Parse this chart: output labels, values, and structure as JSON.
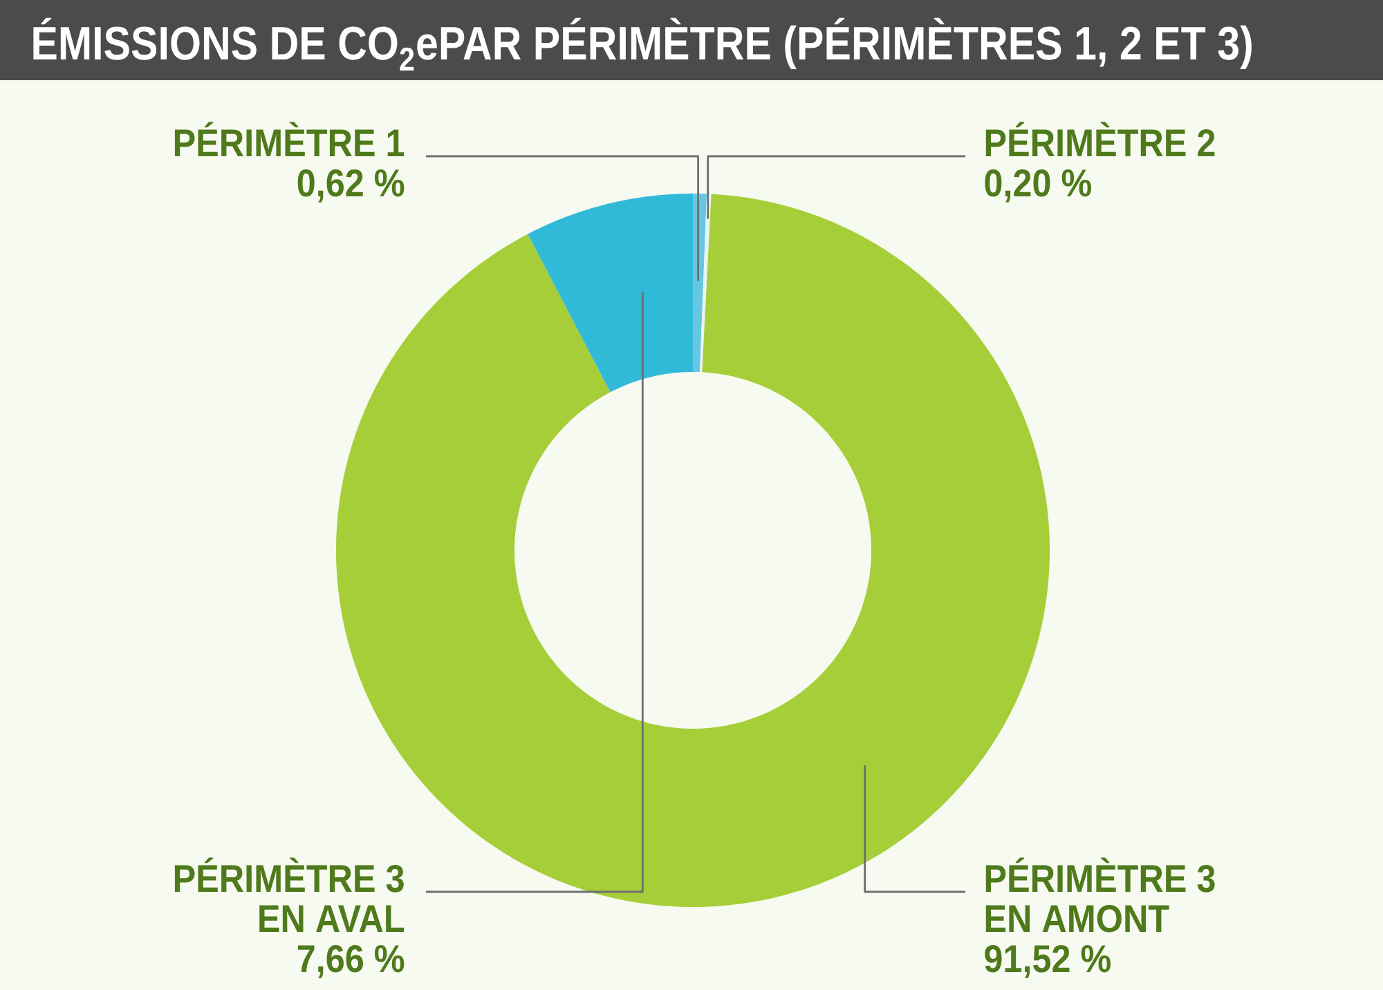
{
  "chart_data": {
    "type": "donut",
    "title": "ÉMISSIONS DE CO$_{2}$ePAR PÉRIMÈTRE (PÉRIMÈTRES 1, 2 ET 3)",
    "categories": [
      "PÉRIMÈTRE 1",
      "PÉRIMÈTRE 2",
      "PÉRIMÈTRE 3 EN AMONT",
      "PÉRIMÈTRE 3 EN AVAL"
    ],
    "values": [
      0.62,
      0.2,
      91.52,
      7.66
    ],
    "colors": [
      "#66c7e2",
      "#e6f4f8",
      "#a6ce39",
      "#31b9d8"
    ],
    "value_labels": [
      "0,62 %",
      "0,20 %",
      "91,52 %",
      "7,66 %"
    ]
  }
}
